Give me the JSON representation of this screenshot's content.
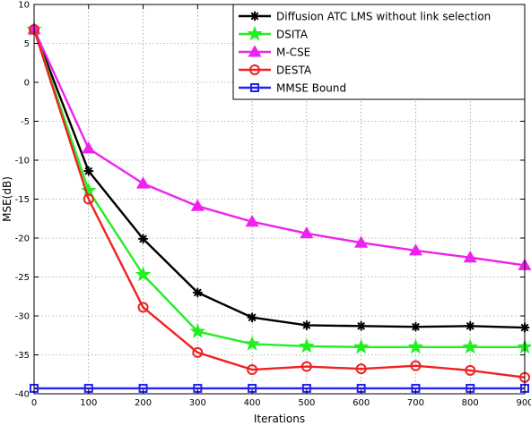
{
  "chart_data": {
    "type": "line",
    "xlabel": "Iterations",
    "ylabel": "MSE(dB)",
    "xlim": [
      0,
      900
    ],
    "ylim": [
      -40,
      10
    ],
    "xticks": [
      0,
      100,
      200,
      300,
      400,
      500,
      600,
      700,
      800,
      900
    ],
    "yticks": [
      10,
      5,
      0,
      -5,
      -10,
      -15,
      -20,
      -25,
      -30,
      -35,
      -40
    ],
    "grid": true,
    "legend_position": "top-right",
    "x": [
      0,
      100,
      200,
      300,
      400,
      500,
      600,
      700,
      800,
      900
    ],
    "series": [
      {
        "name": "Diffusion ATC LMS without link selection",
        "color": "#000000",
        "marker": "asterisk",
        "values": [
          6.8,
          -11.4,
          -20.1,
          -27.0,
          -30.2,
          -31.2,
          -31.3,
          -31.4,
          -31.3,
          -31.5
        ]
      },
      {
        "name": "DSITA",
        "color": "#22ee22",
        "marker": "star",
        "values": [
          6.8,
          -13.9,
          -24.7,
          -32.0,
          -33.6,
          -33.9,
          -34.0,
          -34.0,
          -34.0,
          -34.0
        ]
      },
      {
        "name": "M-CSE",
        "color": "#ee22ee",
        "marker": "triangle",
        "values": [
          6.8,
          -8.5,
          -13.0,
          -15.9,
          -17.9,
          -19.4,
          -20.6,
          -21.6,
          -22.5,
          -23.5
        ]
      },
      {
        "name": "DESTA",
        "color": "#ee2222",
        "marker": "circle",
        "values": [
          6.8,
          -15.0,
          -28.9,
          -34.7,
          -36.9,
          -36.5,
          -36.8,
          -36.4,
          -37.0,
          -37.9
        ]
      },
      {
        "name": "MMSE Bound",
        "color": "#2222ee",
        "marker": "square",
        "values": [
          -39.3,
          -39.3,
          -39.3,
          -39.3,
          -39.3,
          -39.3,
          -39.3,
          -39.3,
          -39.3,
          -39.3
        ]
      }
    ]
  }
}
